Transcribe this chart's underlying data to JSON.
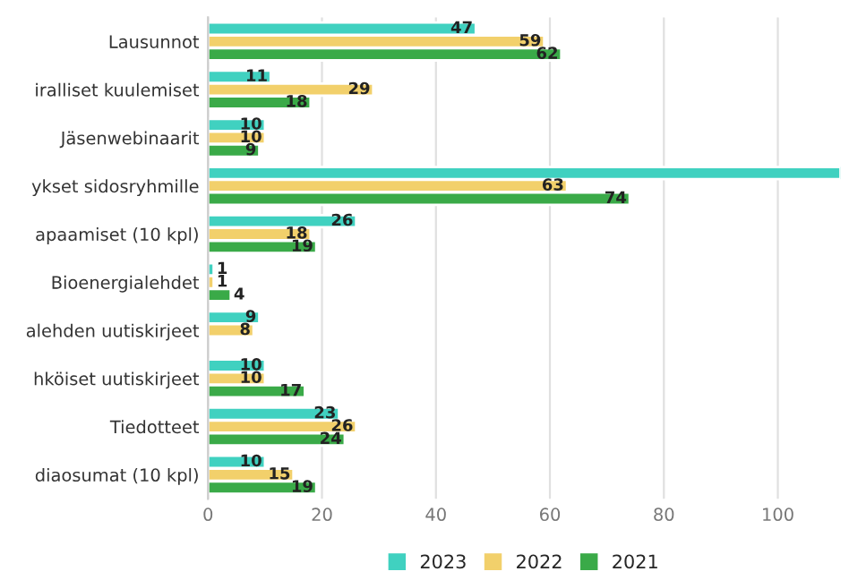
{
  "chart_data": {
    "type": "bar",
    "orientation": "horizontal",
    "categories": [
      "Lausunnot",
      "iralliset kuulemiset",
      "Jäsenwebinaarit",
      "ykset sidosryhmille",
      "apaamiset (10 kpl)",
      "Bioenergialehdet",
      "alehden uutiskirjeet",
      "hköiset uutiskirjeet",
      "Tiedotteet",
      "diaosumat (10 kpl)"
    ],
    "series": [
      {
        "name": "2023",
        "color": "#40d1c0",
        "values": [
          47,
          11,
          10,
          111,
          26,
          1,
          9,
          10,
          23,
          10
        ],
        "value_labels": [
          "47",
          "11",
          "10",
          null,
          "26",
          "1",
          "9",
          "10",
          "23",
          "10"
        ]
      },
      {
        "name": "2022",
        "color": "#f2d06b",
        "values": [
          59,
          29,
          10,
          63,
          18,
          1,
          8,
          10,
          26,
          15
        ],
        "value_labels": [
          "59",
          "29",
          "10",
          "63",
          "18",
          "1",
          "8",
          "10",
          "26",
          "15"
        ]
      },
      {
        "name": "2021",
        "color": "#3aaa48",
        "values": [
          62,
          18,
          9,
          74,
          19,
          4,
          null,
          17,
          24,
          19
        ],
        "value_labels": [
          "62",
          "18",
          "9",
          "74",
          "19",
          "4",
          null,
          "17",
          "24",
          "19"
        ]
      }
    ],
    "xlim": [
      0,
      111
    ],
    "xticks": [
      0,
      20,
      40,
      60,
      80,
      100
    ],
    "grid": "x",
    "legend": "bottom"
  }
}
